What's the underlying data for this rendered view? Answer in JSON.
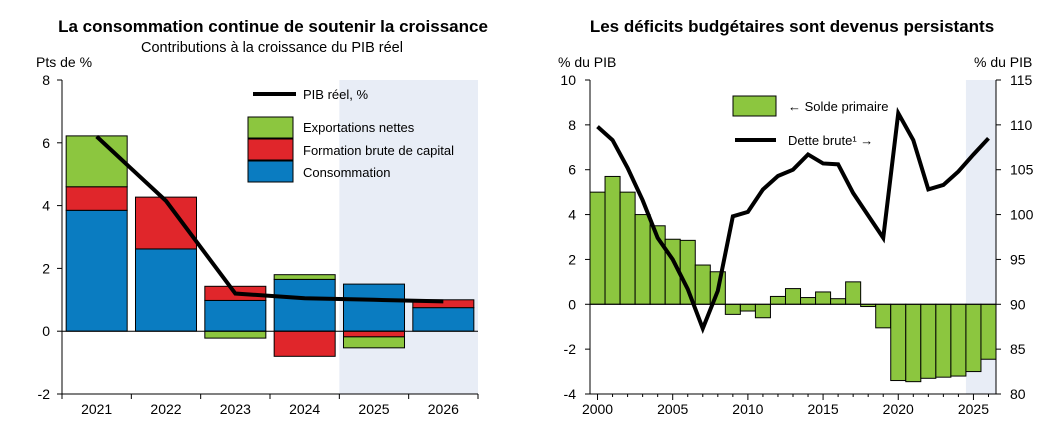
{
  "colors": {
    "consumption": "#0a7cc1",
    "investment": "#e0262b",
    "exports": "#8cc63f",
    "line": "#000000",
    "projection_shade": "#e8edf6",
    "axis": "#000000"
  },
  "chart_data": [
    {
      "type": "bar",
      "stacked": true,
      "title": "La consommation continue de soutenir la croissance",
      "subtitle": "Contributions à la croissance du PIB réel",
      "ylabel": "Pts de %",
      "ylim": [
        -2,
        8
      ],
      "yticks": [
        "-2",
        "0",
        "2",
        "4",
        "6",
        "8"
      ],
      "yticks_values": [
        -2,
        0,
        2,
        4,
        6,
        8
      ],
      "categories": [
        "2021",
        "2022",
        "2023",
        "2024",
        "2025",
        "2026"
      ],
      "projection_from": "2025",
      "legend_position": "top-right",
      "series": [
        {
          "name": "Consommation",
          "kind": "bar",
          "color_key": "consumption",
          "values": [
            3.85,
            2.62,
            0.98,
            1.65,
            1.5,
            0.75
          ]
        },
        {
          "name": "Formation brute de capital",
          "kind": "bar",
          "color_key": "investment",
          "values": [
            0.75,
            1.65,
            0.45,
            -0.8,
            -0.18,
            0.25
          ]
        },
        {
          "name": "Exportations nettes",
          "kind": "bar",
          "color_key": "exports",
          "values": [
            1.62,
            0.0,
            -0.22,
            0.15,
            -0.35,
            0.0
          ]
        },
        {
          "name": "PIB réel, %",
          "kind": "line",
          "color_key": "line",
          "values": [
            6.2,
            4.15,
            1.2,
            1.05,
            1.0,
            0.95
          ]
        }
      ],
      "legend_order": [
        "PIB réel, %",
        "Exportations nettes",
        "Formation brute de capital",
        "Consommation"
      ]
    },
    {
      "type": "bar",
      "title": "Les déficits budgétaires sont devenus persistants",
      "ylabel_left": "% du PIB",
      "ylabel_right": "% du PIB",
      "ylim_left": [
        -4,
        10
      ],
      "ylim_right": [
        80,
        115
      ],
      "yticks_left": [
        "-4",
        "-2",
        "0",
        "2",
        "4",
        "6",
        "8",
        "10"
      ],
      "yticks_left_values": [
        -4,
        -2,
        0,
        2,
        4,
        6,
        8,
        10
      ],
      "yticks_right": [
        "80",
        "85",
        "90",
        "95",
        "100",
        "105",
        "110",
        "115"
      ],
      "yticks_right_values": [
        80,
        85,
        90,
        95,
        100,
        105,
        110,
        115
      ],
      "x": [
        2000,
        2001,
        2002,
        2003,
        2004,
        2005,
        2006,
        2007,
        2008,
        2009,
        2010,
        2011,
        2012,
        2013,
        2014,
        2015,
        2016,
        2017,
        2018,
        2019,
        2020,
        2021,
        2022,
        2023,
        2024,
        2025,
        2026
      ],
      "xticks": [
        "2000",
        "2005",
        "2010",
        "2015",
        "2020",
        "2025"
      ],
      "xticks_values": [
        2000,
        2005,
        2010,
        2015,
        2020,
        2025
      ],
      "projection_from": 2025,
      "legend_position": "top-right",
      "series": [
        {
          "name": "← Solde primaire",
          "kind": "bar",
          "axis": "left",
          "color_key": "exports",
          "values": [
            5.0,
            5.7,
            5.0,
            4.0,
            3.5,
            2.9,
            2.85,
            1.75,
            1.45,
            -0.45,
            -0.3,
            -0.6,
            0.35,
            0.7,
            0.3,
            0.55,
            0.25,
            1.0,
            -0.1,
            -1.05,
            -3.4,
            -3.45,
            -3.3,
            -3.25,
            -3.2,
            -3.0,
            -2.45
          ]
        },
        {
          "name": "Dette brute¹ →",
          "kind": "line",
          "axis": "right",
          "color_key": "line",
          "values": [
            109.8,
            108.3,
            105.2,
            101.6,
            97.4,
            95.0,
            91.7,
            87.3,
            91.5,
            99.8,
            100.3,
            102.8,
            104.3,
            105.0,
            106.7,
            105.7,
            105.6,
            102.4,
            99.9,
            97.4,
            111.3,
            108.3,
            102.8,
            103.3,
            104.8,
            106.7,
            108.5
          ]
        }
      ]
    }
  ]
}
